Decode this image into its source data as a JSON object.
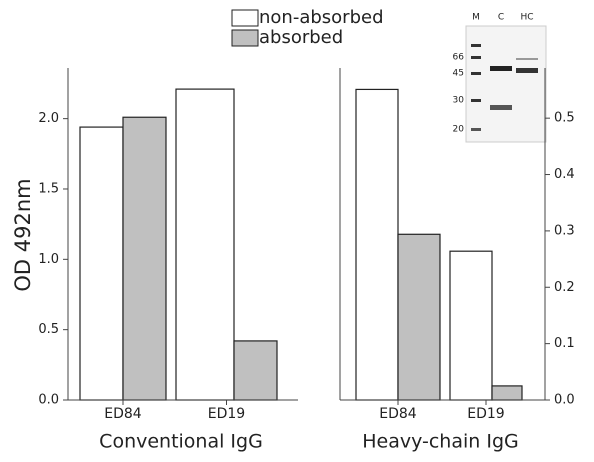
{
  "chart_data": [
    {
      "type": "bar",
      "y_label": "OD 492nm",
      "x_label": "Conventional IgG",
      "categories": [
        "ED84",
        "ED19"
      ],
      "series": [
        {
          "name": "non-absorbed",
          "color": "#ffffff",
          "values": [
            1.94,
            2.21
          ]
        },
        {
          "name": "absorbed",
          "color": "#c0c0c0",
          "values": [
            2.01,
            0.42
          ]
        }
      ],
      "ylim": [
        0,
        2.36
      ],
      "yticks": [
        {
          "value": 0,
          "label": "0.0"
        },
        0.5,
        {
          "value": 1,
          "label": "1.0"
        },
        1.5,
        {
          "value": 2,
          "label": "2.0"
        }
      ]
    },
    {
      "type": "bar",
      "x_label": "Heavy-chain IgG",
      "categories": [
        "ED84",
        "ED19"
      ],
      "series": [
        {
          "name": "non-absorbed",
          "color": "#ffffff",
          "axis": "y2",
          "values": [
            0.551,
            0.264
          ]
        },
        {
          "name": "absorbed",
          "color": "#c0c0c0",
          "axis": "y2",
          "values": [
            0.294,
            0.025
          ]
        }
      ],
      "y2lim": [
        0,
        0.589
      ],
      "y2ticks": [
        {
          "value": 0,
          "label": "0.0"
        },
        0.1,
        0.2,
        0.3,
        0.4,
        0.5
      ]
    }
  ],
  "inset": {
    "lanes": [
      "M",
      "C",
      "HC"
    ],
    "markers": [
      66,
      45,
      30,
      20
    ]
  }
}
